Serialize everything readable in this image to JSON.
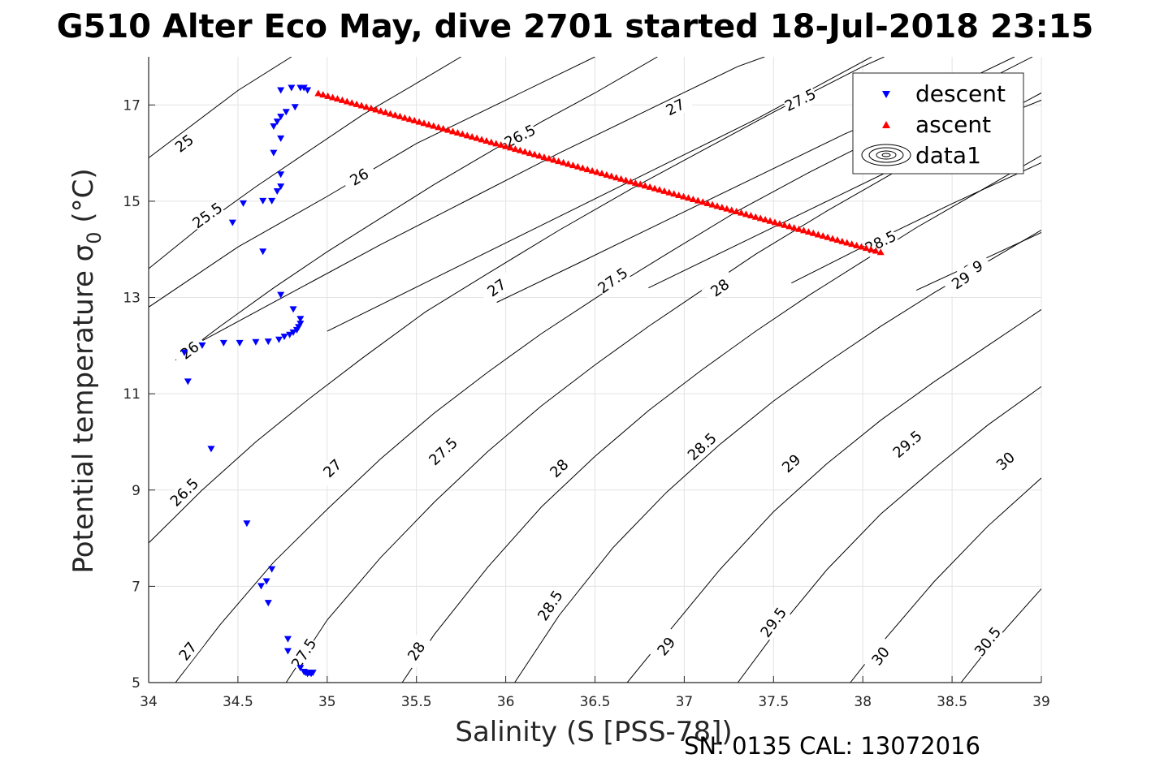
{
  "chart_data": {
    "type": "scatter",
    "title": "G510 Alter Eco May, dive 2701 started 18-Jul-2018 23:15",
    "xlabel": "Salinity (S [PSS-78])",
    "ylabel": "Potential temperature σ",
    "ylabel_subscript": "0",
    "ylabel_suffix": " (°C)",
    "footer": "SN: 0135  CAL: 13072016",
    "xlim": [
      34,
      39
    ],
    "ylim": [
      5,
      18
    ],
    "xticks": [
      "34",
      "34.5",
      "35",
      "35.5",
      "36",
      "36.5",
      "37",
      "37.5",
      "38",
      "38.5",
      "39"
    ],
    "yticks": [
      "5",
      "7",
      "9",
      "11",
      "13",
      "15",
      "17"
    ],
    "grid": true,
    "legend_position": "top-right",
    "legend": [
      "descent",
      "ascent",
      "data1"
    ],
    "colors": {
      "descent": "#0000ff",
      "ascent": "#ff0000",
      "contour": "#000000",
      "grid": "#e3e3e3",
      "axis": "#262626"
    },
    "series": [
      {
        "name": "descent",
        "marker": "down-triangle",
        "points": [
          [
            34.85,
            17.35
          ],
          [
            34.87,
            17.35
          ],
          [
            34.89,
            17.3
          ],
          [
            34.8,
            17.35
          ],
          [
            34.74,
            17.3
          ],
          [
            34.82,
            16.95
          ],
          [
            34.77,
            16.85
          ],
          [
            34.74,
            16.75
          ],
          [
            34.72,
            16.65
          ],
          [
            34.7,
            16.55
          ],
          [
            34.74,
            16.3
          ],
          [
            34.7,
            16.0
          ],
          [
            34.74,
            15.55
          ],
          [
            34.74,
            15.3
          ],
          [
            34.72,
            15.2
          ],
          [
            34.69,
            15.0
          ],
          [
            34.64,
            15.0
          ],
          [
            34.53,
            14.95
          ],
          [
            34.47,
            14.55
          ],
          [
            34.64,
            13.95
          ],
          [
            34.74,
            13.05
          ],
          [
            34.81,
            12.75
          ],
          [
            34.85,
            12.55
          ],
          [
            34.85,
            12.45
          ],
          [
            34.84,
            12.38
          ],
          [
            34.83,
            12.32
          ],
          [
            34.81,
            12.27
          ],
          [
            34.79,
            12.22
          ],
          [
            34.76,
            12.18
          ],
          [
            34.73,
            12.12
          ],
          [
            34.67,
            12.08
          ],
          [
            34.6,
            12.07
          ],
          [
            34.51,
            12.05
          ],
          [
            34.42,
            12.05
          ],
          [
            34.3,
            12.0
          ],
          [
            34.2,
            11.85
          ],
          [
            34.22,
            11.25
          ],
          [
            34.35,
            9.85
          ],
          [
            34.55,
            8.3
          ],
          [
            34.69,
            7.35
          ],
          [
            34.66,
            7.1
          ],
          [
            34.63,
            7.0
          ],
          [
            34.67,
            6.65
          ],
          [
            34.78,
            5.9
          ],
          [
            34.78,
            5.65
          ],
          [
            34.85,
            5.3
          ],
          [
            34.87,
            5.22
          ],
          [
            34.88,
            5.2
          ],
          [
            34.9,
            5.2
          ],
          [
            34.92,
            5.2
          ],
          [
            34.89,
            5.18
          ],
          [
            34.91,
            5.18
          ]
        ]
      },
      {
        "name": "ascent",
        "marker": "up-triangle",
        "line": {
          "from": [
            34.95,
            17.25
          ],
          "to": [
            38.1,
            13.95
          ],
          "count": 118
        }
      }
    ],
    "contour_levels": [
      "25",
      "25.5",
      "26",
      "26.5",
      "27",
      "27.5",
      "28",
      "28.5",
      "29",
      "29.5",
      "30",
      "30.5"
    ],
    "contours_upper": [
      {
        "level": "25",
        "label_at": [
          34.2,
          16.2
        ],
        "points": [
          [
            34.0,
            15.9
          ],
          [
            34.5,
            17.3
          ],
          [
            34.8,
            18.0
          ]
        ]
      },
      {
        "level": "26",
        "label_at": [
          35.18,
          15.5
        ],
        "points": [
          [
            34.0,
            12.8
          ],
          [
            34.5,
            14.05
          ],
          [
            35.0,
            15.1
          ],
          [
            35.5,
            16.2
          ],
          [
            36.0,
            17.1
          ],
          [
            36.5,
            18.0
          ]
        ]
      },
      {
        "level": "26.5",
        "label_at": [
          36.08,
          16.35
        ],
        "points": [
          [
            34.3,
            12.1
          ],
          [
            34.8,
            13.1
          ],
          [
            35.3,
            14.1
          ],
          [
            35.8,
            15.05
          ],
          [
            36.3,
            16.0
          ],
          [
            36.8,
            16.9
          ],
          [
            37.3,
            17.8
          ],
          [
            37.45,
            18.0
          ]
        ]
      },
      {
        "level": "27",
        "label_at": [
          36.95,
          16.95
        ],
        "points": [
          [
            35.0,
            12.3
          ],
          [
            35.6,
            13.4
          ],
          [
            36.2,
            14.5
          ],
          [
            36.8,
            15.6
          ],
          [
            37.4,
            16.7
          ],
          [
            38.05,
            18.0
          ]
        ]
      },
      {
        "level": "27.5",
        "label_at": [
          37.65,
          17.1
        ],
        "points": [
          [
            35.95,
            12.9
          ],
          [
            36.4,
            13.7
          ],
          [
            36.9,
            14.6
          ],
          [
            37.4,
            15.5
          ],
          [
            37.9,
            16.4
          ],
          [
            38.4,
            17.2
          ],
          [
            38.85,
            18.0
          ]
        ]
      },
      {
        "level": "28",
        "label_at": [
          38.1,
          16.7
        ],
        "points": [
          [
            36.8,
            13.2
          ],
          [
            37.3,
            14.1
          ],
          [
            37.8,
            15.0
          ],
          [
            38.3,
            15.9
          ],
          [
            38.8,
            16.8
          ],
          [
            39.0,
            17.1
          ]
        ]
      },
      {
        "level": "28.5",
        "label_at": [
          38.1,
          14.15
        ],
        "points": [
          [
            37.6,
            13.3
          ],
          [
            38.0,
            14.05
          ],
          [
            38.5,
            14.95
          ],
          [
            39.0,
            15.8
          ]
        ]
      },
      {
        "level": "29",
        "label_at": [
          38.62,
          13.6
        ],
        "points": [
          [
            38.3,
            13.15
          ],
          [
            38.65,
            13.75
          ],
          [
            39.0,
            14.35
          ]
        ]
      }
    ],
    "contours_lower": [
      {
        "level": "25.5",
        "label_at": [
          34.33,
          14.7
        ],
        "points": [
          [
            34.0,
            13.6
          ],
          [
            34.3,
            14.5
          ],
          [
            34.6,
            15.3
          ],
          [
            34.9,
            16.05
          ],
          [
            35.2,
            16.8
          ],
          [
            35.5,
            17.45
          ],
          [
            35.75,
            18.0
          ]
        ]
      },
      {
        "level": "26",
        "label_at": [
          34.23,
          11.9
        ],
        "points": [
          [
            34.15,
            11.7
          ],
          [
            34.4,
            12.4
          ],
          [
            34.7,
            13.2
          ],
          [
            35.0,
            13.95
          ],
          [
            35.3,
            14.65
          ],
          [
            35.6,
            15.35
          ],
          [
            35.9,
            16.0
          ],
          [
            36.2,
            16.65
          ],
          [
            36.5,
            17.25
          ],
          [
            36.85,
            18.0
          ]
        ]
      },
      {
        "level": "26.5",
        "label_at": [
          34.2,
          8.95
        ],
        "points": [
          [
            34.0,
            7.9
          ],
          [
            34.3,
            9.0
          ],
          [
            34.6,
            10.0
          ],
          [
            34.9,
            10.9
          ],
          [
            35.2,
            11.75
          ],
          [
            35.55,
            12.7
          ],
          [
            35.9,
            13.5
          ],
          [
            36.3,
            14.4
          ],
          [
            36.7,
            15.25
          ],
          [
            37.1,
            16.05
          ],
          [
            37.5,
            16.85
          ],
          [
            38.0,
            17.8
          ],
          [
            38.12,
            18.0
          ]
        ]
      },
      {
        "level": "27",
        "label_at": [
          34.22,
          5.65
        ],
        "points": [
          [
            34.15,
            5.0
          ],
          [
            34.4,
            6.2
          ],
          [
            34.7,
            7.5
          ],
          [
            35.0,
            8.6
          ],
          [
            35.3,
            9.65
          ],
          [
            35.6,
            10.6
          ],
          [
            35.9,
            11.45
          ],
          [
            36.2,
            12.25
          ],
          [
            36.55,
            13.1
          ],
          [
            36.9,
            13.9
          ],
          [
            37.3,
            14.8
          ],
          [
            37.7,
            15.6
          ],
          [
            38.1,
            16.35
          ],
          [
            38.5,
            17.15
          ],
          [
            38.95,
            18.0
          ]
        ]
      },
      {
        "level": "27.5",
        "label_at": [
          34.87,
          5.6
        ],
        "points": [
          [
            34.77,
            5.0
          ],
          [
            35.0,
            6.3
          ],
          [
            35.3,
            7.6
          ],
          [
            35.6,
            8.75
          ],
          [
            35.9,
            9.8
          ],
          [
            36.2,
            10.75
          ],
          [
            36.5,
            11.6
          ],
          [
            36.8,
            12.4
          ],
          [
            37.1,
            13.15
          ],
          [
            37.4,
            13.9
          ],
          [
            37.8,
            14.8
          ],
          [
            38.2,
            15.65
          ],
          [
            38.6,
            16.45
          ],
          [
            39.0,
            17.25
          ]
        ]
      },
      {
        "level": "28",
        "label_at": [
          35.5,
          5.65
        ],
        "points": [
          [
            35.42,
            5.0
          ],
          [
            35.6,
            6.0
          ],
          [
            35.9,
            7.4
          ],
          [
            36.2,
            8.65
          ],
          [
            36.5,
            9.7
          ],
          [
            36.8,
            10.65
          ],
          [
            37.1,
            11.5
          ],
          [
            37.4,
            12.3
          ],
          [
            37.7,
            13.05
          ],
          [
            38.0,
            13.75
          ],
          [
            38.3,
            14.45
          ],
          [
            38.65,
            15.2
          ],
          [
            39.0,
            15.95
          ]
        ]
      },
      {
        "level": "28.5",
        "label_at": [
          36.25,
          6.6
        ],
        "points": [
          [
            36.05,
            5.0
          ],
          [
            36.3,
            6.4
          ],
          [
            36.6,
            7.8
          ],
          [
            36.9,
            8.95
          ],
          [
            37.2,
            9.95
          ],
          [
            37.5,
            10.85
          ],
          [
            37.8,
            11.65
          ],
          [
            38.1,
            12.4
          ],
          [
            38.4,
            13.1
          ],
          [
            38.7,
            13.75
          ],
          [
            39.0,
            14.4
          ]
        ]
      },
      {
        "level": "29",
        "label_at": [
          36.9,
          5.75
        ],
        "points": [
          [
            36.68,
            5.0
          ],
          [
            36.9,
            6.0
          ],
          [
            37.2,
            7.35
          ],
          [
            37.5,
            8.55
          ],
          [
            37.8,
            9.55
          ],
          [
            38.1,
            10.45
          ],
          [
            38.4,
            11.25
          ],
          [
            38.7,
            12.0
          ],
          [
            39.0,
            12.75
          ]
        ]
      },
      {
        "level": "29.5",
        "label_at": [
          37.5,
          6.25
        ],
        "points": [
          [
            37.3,
            5.0
          ],
          [
            37.5,
            6.0
          ],
          [
            37.8,
            7.35
          ],
          [
            38.1,
            8.5
          ],
          [
            38.4,
            9.45
          ],
          [
            38.7,
            10.35
          ],
          [
            39.0,
            11.15
          ]
        ]
      },
      {
        "level": "30",
        "label_at": [
          38.1,
          5.55
        ],
        "points": [
          [
            37.93,
            5.0
          ],
          [
            38.1,
            5.8
          ],
          [
            38.4,
            7.1
          ],
          [
            38.7,
            8.25
          ],
          [
            39.0,
            9.25
          ]
        ]
      },
      {
        "level": "30.5",
        "label_at": [
          38.7,
          5.85
        ],
        "points": [
          [
            38.55,
            5.0
          ],
          [
            38.7,
            5.7
          ],
          [
            39.0,
            6.95
          ]
        ]
      }
    ],
    "contours_mid": [
      {
        "level": "27",
        "label_at": [
          35.03,
          9.45
        ]
      },
      {
        "level": "27.5",
        "label_at": [
          35.65,
          9.8
        ]
      },
      {
        "level": "28",
        "label_at": [
          36.3,
          9.45
        ]
      },
      {
        "level": "28.5",
        "label_at": [
          37.1,
          9.9
        ]
      },
      {
        "level": "29",
        "label_at": [
          37.6,
          9.55
        ]
      },
      {
        "level": "29.5",
        "label_at": [
          38.25,
          9.95
        ]
      },
      {
        "level": "30",
        "label_at": [
          38.8,
          9.6
        ]
      },
      {
        "level": "27",
        "label_at": [
          35.95,
          13.2
        ]
      },
      {
        "level": "27.5",
        "label_at": [
          36.6,
          13.35
        ]
      },
      {
        "level": "28",
        "label_at": [
          37.2,
          13.2
        ]
      },
      {
        "level": "29",
        "label_at": [
          38.55,
          13.35
        ]
      }
    ]
  }
}
